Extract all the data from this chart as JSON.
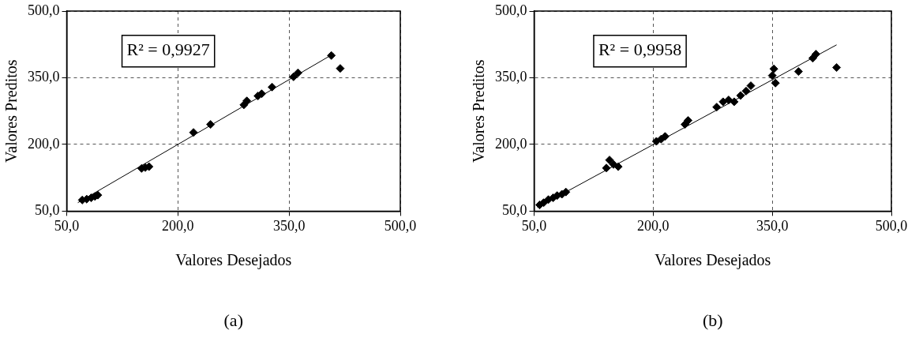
{
  "chart_data": [
    {
      "type": "scatter",
      "xlabel": "Valores Desejados",
      "ylabel": "Valores Preditos",
      "annotations": [
        "R² = 0,9927",
        "(a)"
      ],
      "xlim": [
        50,
        500
      ],
      "ylim": [
        50,
        500
      ],
      "xticks": [
        {
          "value": 50,
          "label": "50,0"
        },
        {
          "value": 200,
          "label": "200,0"
        },
        {
          "value": 350,
          "label": "350,0"
        },
        {
          "value": 500,
          "label": "500,0"
        }
      ],
      "yticks": [
        {
          "value": 50,
          "label": "50,0"
        },
        {
          "value": 200,
          "label": "200,0"
        },
        {
          "value": 350,
          "label": "350,0"
        },
        {
          "value": 500,
          "label": "500,0"
        }
      ],
      "grid": true,
      "legend": false,
      "marker": "diamond",
      "series": [
        {
          "color": "#000000",
          "x": [
            71,
            77,
            83,
            88,
            92,
            151,
            156,
            161,
            221,
            244,
            289,
            293,
            308,
            313,
            327,
            356,
            362,
            407,
            419
          ],
          "values": [
            75,
            77,
            80,
            83,
            86,
            146,
            148,
            150,
            227,
            245,
            289,
            298,
            309,
            314,
            329,
            352,
            361,
            400,
            371
          ]
        },
        {
          "type": "line",
          "color": "#000000",
          "marker": "none",
          "x": [
            65,
            410
          ],
          "values": [
            69,
            404
          ]
        }
      ]
    },
    {
      "type": "scatter",
      "xlabel": "Valores Desejados",
      "ylabel": "Valores Preditos",
      "annotations": [
        "R² = 0,9958",
        "(b)"
      ],
      "xlim": [
        50,
        500
      ],
      "ylim": [
        50,
        500
      ],
      "xticks": [
        {
          "value": 50,
          "label": "50,0"
        },
        {
          "value": 200,
          "label": "200,0"
        },
        {
          "value": 350,
          "label": "350,0"
        },
        {
          "value": 500,
          "label": "500,0"
        }
      ],
      "yticks": [
        {
          "value": 50,
          "label": "50,0"
        },
        {
          "value": 200,
          "label": "200,0"
        },
        {
          "value": 350,
          "label": "350,0"
        },
        {
          "value": 500,
          "label": "500,0"
        }
      ],
      "grid": true,
      "legend": false,
      "marker": "diamond",
      "series": [
        {
          "color": "#000000",
          "x": [
            57,
            62,
            68,
            74,
            79,
            85,
            90,
            141,
            145,
            150,
            156,
            204,
            210,
            215,
            240,
            244,
            280,
            288,
            295,
            302,
            310,
            317,
            323,
            350,
            352,
            354,
            383,
            401,
            405,
            431
          ],
          "values": [
            64,
            69,
            76,
            80,
            85,
            88,
            93,
            147,
            165,
            155,
            150,
            207,
            212,
            218,
            245,
            254,
            284,
            296,
            300,
            296,
            310,
            320,
            332,
            355,
            370,
            338,
            364,
            394,
            403,
            373
          ]
        },
        {
          "type": "line",
          "color": "#000000",
          "marker": "none",
          "x": [
            54,
            431
          ],
          "values": [
            58,
            424
          ]
        }
      ]
    }
  ]
}
